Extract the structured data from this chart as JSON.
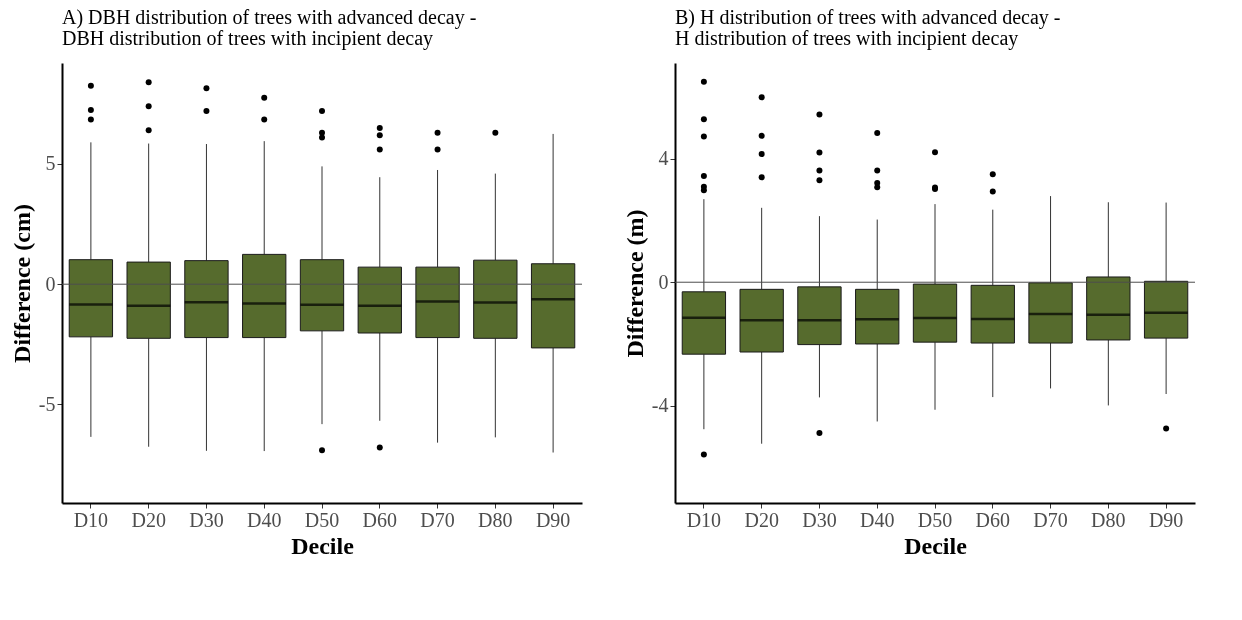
{
  "chart_data": [
    {
      "type": "box",
      "title": "A) DBH distribution of trees with advanced decay -",
      "subtitle": "DBH distribution of trees with incipient decay",
      "xlabel": "Decile",
      "ylabel": "Difference (cm)",
      "categories": [
        "D10",
        "D20",
        "D30",
        "D40",
        "D50",
        "D60",
        "D70",
        "D80",
        "D90"
      ],
      "ylim": [
        -9.1,
        9.2
      ],
      "yticks": [
        -5,
        0,
        5
      ],
      "grid": false,
      "marker": "circle",
      "series": [
        {
          "color": "#566b2d",
          "boxes": [
            {
              "low": -6.35,
              "q1": -2.19,
              "median": -0.84,
              "q3": 1.02,
              "high": 5.9,
              "outliers": [
                8.25,
                7.25,
                6.85
              ]
            },
            {
              "low": -6.76,
              "q1": -2.25,
              "median": -0.9,
              "q3": 0.92,
              "high": 5.85,
              "outliers": [
                8.4,
                7.4,
                6.4
              ]
            },
            {
              "low": -6.93,
              "q1": -2.22,
              "median": -0.75,
              "q3": 0.98,
              "high": 5.83,
              "outliers": [
                8.15,
                7.2
              ]
            },
            {
              "low": -6.94,
              "q1": -2.22,
              "median": -0.8,
              "q3": 1.24,
              "high": 5.95,
              "outliers": [
                7.75,
                6.85
              ]
            },
            {
              "low": -5.82,
              "q1": -1.94,
              "median": -0.85,
              "q3": 1.02,
              "high": 4.9,
              "outliers": [
                7.2,
                6.3,
                6.1,
                -6.91
              ]
            },
            {
              "low": -5.68,
              "q1": -2.03,
              "median": -0.9,
              "q3": 0.71,
              "high": 4.45,
              "outliers": [
                6.5,
                6.2,
                5.6,
                -6.79
              ]
            },
            {
              "low": -6.59,
              "q1": -2.22,
              "median": -0.72,
              "q3": 0.71,
              "high": 4.75,
              "outliers": [
                6.3,
                5.6
              ]
            },
            {
              "low": -6.37,
              "q1": -2.25,
              "median": -0.76,
              "q3": 1.0,
              "high": 4.6,
              "outliers": [
                6.3
              ]
            },
            {
              "low": -7.0,
              "q1": -2.65,
              "median": -0.63,
              "q3": 0.85,
              "high": 6.25
            }
          ]
        }
      ],
      "ref_lines": [
        {
          "axis": "y",
          "value": 0,
          "color": "#4d4d4d"
        }
      ]
    },
    {
      "type": "box",
      "title": "B) H distribution of trees with advanced decay -",
      "subtitle": "H distribution of trees with incipient decay",
      "xlabel": "Decile",
      "ylabel": "Difference (m)",
      "categories": [
        "D10",
        "D20",
        "D30",
        "D40",
        "D50",
        "D60",
        "D70",
        "D80",
        "D90"
      ],
      "ylim": [
        -7.15,
        7.1
      ],
      "yticks": [
        -4,
        0,
        4
      ],
      "grid": false,
      "marker": "circle",
      "series": [
        {
          "color": "#566b2d",
          "boxes": [
            {
              "low": -4.76,
              "q1": -2.33,
              "median": -1.15,
              "q3": -0.31,
              "high": 2.69,
              "outliers": [
                6.49,
                5.28,
                4.72,
                3.44,
                3.09,
                2.98,
                -5.58
              ]
            },
            {
              "low": -5.23,
              "q1": -2.26,
              "median": -1.23,
              "q3": -0.23,
              "high": 2.41,
              "outliers": [
                5.99,
                4.74,
                4.15,
                3.4
              ]
            },
            {
              "low": -3.73,
              "q1": -2.02,
              "median": -1.23,
              "q3": -0.15,
              "high": 2.14,
              "outliers": [
                5.43,
                4.2,
                3.62,
                3.3,
                -4.88
              ]
            },
            {
              "low": -4.51,
              "q1": -2.0,
              "median": -1.2,
              "q3": -0.23,
              "high": 2.03,
              "outliers": [
                4.83,
                3.62,
                3.21,
                3.08
              ]
            },
            {
              "low": -4.13,
              "q1": -1.94,
              "median": -1.16,
              "q3": -0.06,
              "high": 2.53,
              "outliers": [
                4.21,
                3.07,
                3.02
              ]
            },
            {
              "low": -3.72,
              "q1": -1.97,
              "median": -1.19,
              "q3": -0.1,
              "high": 2.35,
              "outliers": [
                3.5,
                2.94
              ]
            },
            {
              "low": -3.44,
              "q1": -1.97,
              "median": -1.03,
              "q3": -0.02,
              "high": 2.79
            },
            {
              "low": -3.99,
              "q1": -1.87,
              "median": -1.05,
              "q3": 0.17,
              "high": 2.59
            },
            {
              "low": -3.62,
              "q1": -1.81,
              "median": -0.99,
              "q3": 0.03,
              "high": 2.58,
              "outliers": [
                -4.74
              ]
            }
          ]
        }
      ],
      "ref_lines": [
        {
          "axis": "y",
          "value": 0,
          "color": "#4d4d4d"
        }
      ]
    }
  ]
}
